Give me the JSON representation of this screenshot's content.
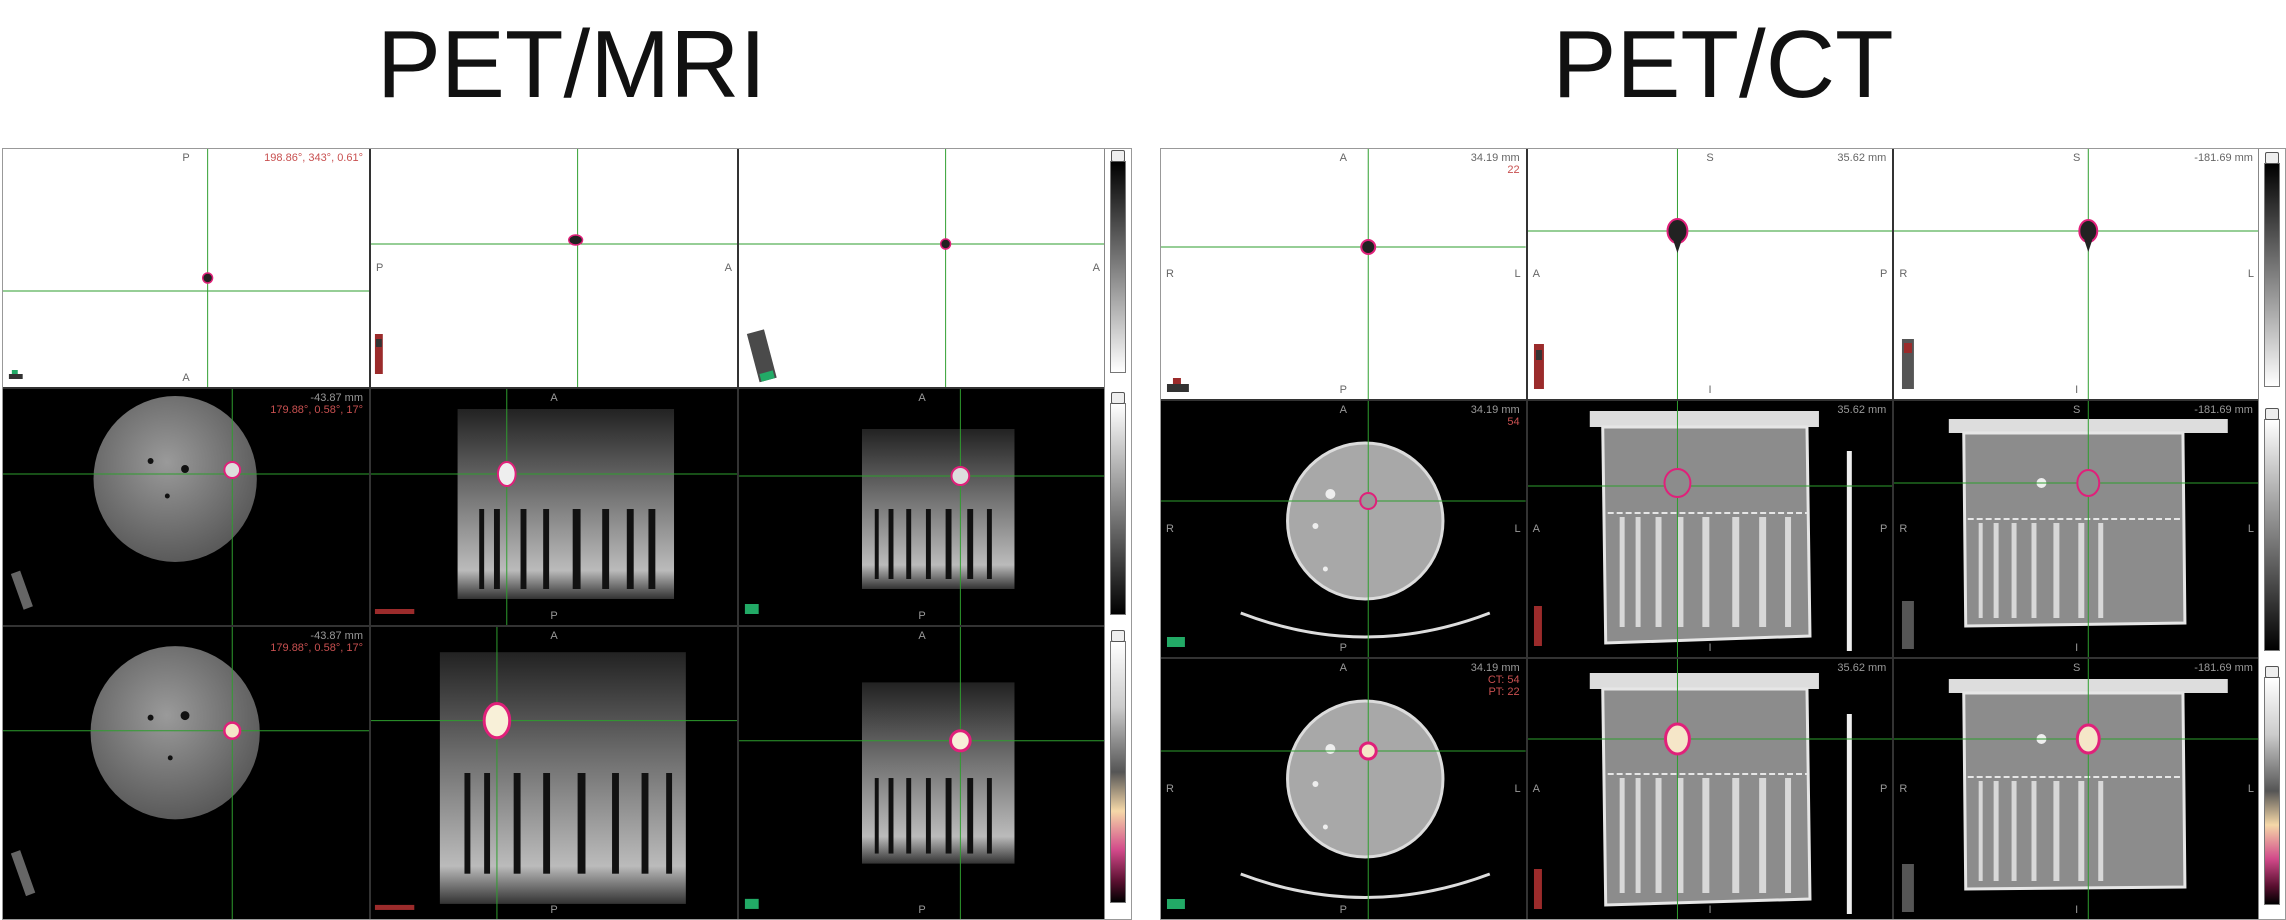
{
  "titles": {
    "left": "PET/MRI",
    "right": "PET/CT"
  },
  "petmri": {
    "row1": [
      {
        "top": "P",
        "bottom": "A",
        "left": "",
        "right": "",
        "info": [
          "198.86°, 343°, 0.61°"
        ]
      },
      {
        "top": "",
        "bottom": "",
        "left": "P",
        "right": "A",
        "info": []
      },
      {
        "top": "",
        "bottom": "",
        "left": "",
        "right": "A",
        "info": []
      }
    ],
    "row2": [
      {
        "top": "",
        "bottom": "",
        "left": "",
        "right": "",
        "info": [
          "-43.87 mm",
          "179.88°, 0.58°, 17°"
        ]
      },
      {
        "top": "A",
        "bottom": "P",
        "left": "",
        "right": "",
        "info": []
      },
      {
        "top": "A",
        "bottom": "P",
        "left": "",
        "right": "",
        "info": []
      }
    ],
    "row3": [
      {
        "top": "",
        "bottom": "",
        "left": "",
        "right": "",
        "info": [
          "-43.87 mm",
          "179.88°, 0.58°, 17°"
        ]
      },
      {
        "top": "A",
        "bottom": "P",
        "left": "",
        "right": "",
        "info": []
      },
      {
        "top": "A",
        "bottom": "P",
        "left": "",
        "right": "",
        "info": []
      }
    ]
  },
  "petct": {
    "row1": [
      {
        "top": "A",
        "bottom": "P",
        "left": "R",
        "right": "L",
        "info": [
          "34.19 mm",
          "22"
        ]
      },
      {
        "top": "S",
        "bottom": "I",
        "left": "A",
        "right": "P",
        "info": [
          "35.62 mm"
        ]
      },
      {
        "top": "S",
        "bottom": "I",
        "left": "R",
        "right": "L",
        "info": [
          "-181.69 mm"
        ]
      }
    ],
    "row2": [
      {
        "top": "A",
        "bottom": "P",
        "left": "R",
        "right": "L",
        "info": [
          "34.19 mm",
          "54"
        ]
      },
      {
        "top": "S",
        "bottom": "I",
        "left": "A",
        "right": "P",
        "info": [
          "35.62 mm"
        ]
      },
      {
        "top": "S",
        "bottom": "I",
        "left": "R",
        "right": "L",
        "info": [
          "-181.69 mm"
        ]
      }
    ],
    "row3": [
      {
        "top": "A",
        "bottom": "P",
        "left": "R",
        "right": "L",
        "info": [
          "34.19 mm",
          "CT: 54",
          "PT: 22"
        ]
      },
      {
        "top": "S",
        "bottom": "I",
        "left": "A",
        "right": "P",
        "info": [
          "35.62 mm"
        ]
      },
      {
        "top": "S",
        "bottom": "I",
        "left": "R",
        "right": "L",
        "info": [
          "-181.69 mm"
        ]
      }
    ]
  },
  "colors": {
    "crosshair": "#2e9e2e",
    "contour": "#e0207a",
    "info_red": "#c85050"
  }
}
